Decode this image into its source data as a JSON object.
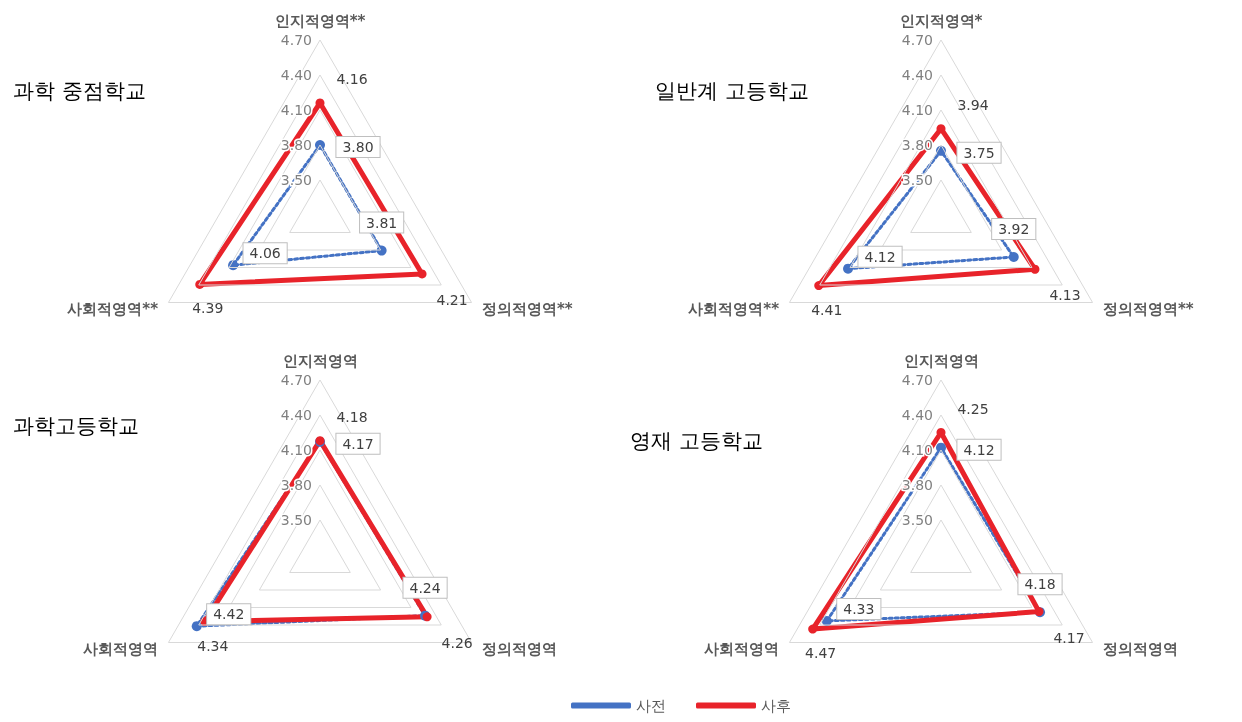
{
  "chart_data": [
    {
      "type": "radar",
      "title": "과학 중점학교",
      "categories": [
        "인지적영역**",
        "정의적영역**",
        "사회적영역**"
      ],
      "ylim": [
        3.2,
        4.7
      ],
      "yticks": [
        {
          "value": 3.5,
          "label": "3.50"
        },
        {
          "value": 3.8,
          "label": "3.80"
        },
        {
          "value": 4.1,
          "label": "4.10"
        },
        {
          "value": 4.4,
          "label": "4.40"
        },
        {
          "value": 4.7,
          "label": "4.70"
        }
      ],
      "grid": true,
      "legend": false,
      "marker": "circle",
      "series": [
        {
          "color": "#4472c4",
          "line_style": "dotted",
          "values": [
            3.8,
            3.81,
            4.06
          ],
          "value_labels": [
            "3.80",
            "3.81",
            "4.06"
          ]
        },
        {
          "color": "#e8232a",
          "line_style": "solid",
          "values": [
            4.16,
            4.21,
            4.39
          ],
          "value_labels": [
            "4.16",
            "4.21",
            "4.39"
          ]
        }
      ]
    },
    {
      "type": "radar",
      "title": "일반계 고등학교",
      "categories": [
        "인지적영역*",
        "정의적영역**",
        "사회적영역**"
      ],
      "ylim": [
        3.2,
        4.7
      ],
      "yticks": [
        {
          "value": 3.5,
          "label": "3.50"
        },
        {
          "value": 3.8,
          "label": "3.80"
        },
        {
          "value": 4.1,
          "label": "4.10"
        },
        {
          "value": 4.4,
          "label": "4.40"
        },
        {
          "value": 4.7,
          "label": "4.70"
        }
      ],
      "grid": true,
      "legend": false,
      "marker": "circle",
      "series": [
        {
          "color": "#4472c4",
          "line_style": "dotted",
          "values": [
            3.75,
            3.92,
            4.12
          ],
          "value_labels": [
            "3.75",
            "3.92",
            "4.12"
          ]
        },
        {
          "color": "#e8232a",
          "line_style": "solid",
          "values": [
            3.94,
            4.13,
            4.41
          ],
          "value_labels": [
            "3.94",
            "4.13",
            "4.41"
          ]
        }
      ]
    },
    {
      "type": "radar",
      "title": "과학고등학교",
      "categories": [
        "인지적영역",
        "정의적영역",
        "사회적영역"
      ],
      "ylim": [
        3.2,
        4.7
      ],
      "yticks": [
        {
          "value": 3.5,
          "label": "3.50"
        },
        {
          "value": 3.8,
          "label": "3.80"
        },
        {
          "value": 4.1,
          "label": "4.10"
        },
        {
          "value": 4.4,
          "label": "4.40"
        },
        {
          "value": 4.7,
          "label": "4.70"
        }
      ],
      "grid": true,
      "legend": "bottom right",
      "marker": "circle",
      "series": [
        {
          "name": "사전",
          "color": "#4472c4",
          "line_style": "dotted",
          "values": [
            4.17,
            4.24,
            4.42
          ],
          "value_labels": [
            "4.17",
            "4.24",
            "4.42"
          ]
        },
        {
          "name": "사후",
          "color": "#e8232a",
          "line_style": "solid",
          "values": [
            4.18,
            4.26,
            4.34
          ],
          "value_labels": [
            "4.18",
            "4.26",
            "4.34"
          ]
        }
      ]
    },
    {
      "type": "radar",
      "title": "영재 고등학교",
      "categories": [
        "인지적영역",
        "정의적영역",
        "사회적영역"
      ],
      "ylim": [
        3.2,
        4.7
      ],
      "yticks": [
        {
          "value": 3.5,
          "label": "3.50"
        },
        {
          "value": 3.8,
          "label": "3.80"
        },
        {
          "value": 4.1,
          "label": "4.10"
        },
        {
          "value": 4.4,
          "label": "4.40"
        },
        {
          "value": 4.7,
          "label": "4.70"
        }
      ],
      "grid": true,
      "legend": false,
      "marker": "circle",
      "series": [
        {
          "color": "#4472c4",
          "line_style": "dotted",
          "values": [
            4.12,
            4.18,
            4.33
          ],
          "value_labels": [
            "4.12",
            "4.18",
            "4.33"
          ]
        },
        {
          "color": "#e8232a",
          "line_style": "solid",
          "values": [
            4.25,
            4.17,
            4.47
          ],
          "value_labels": [
            "4.25",
            "4.17",
            "4.47"
          ]
        }
      ]
    }
  ]
}
